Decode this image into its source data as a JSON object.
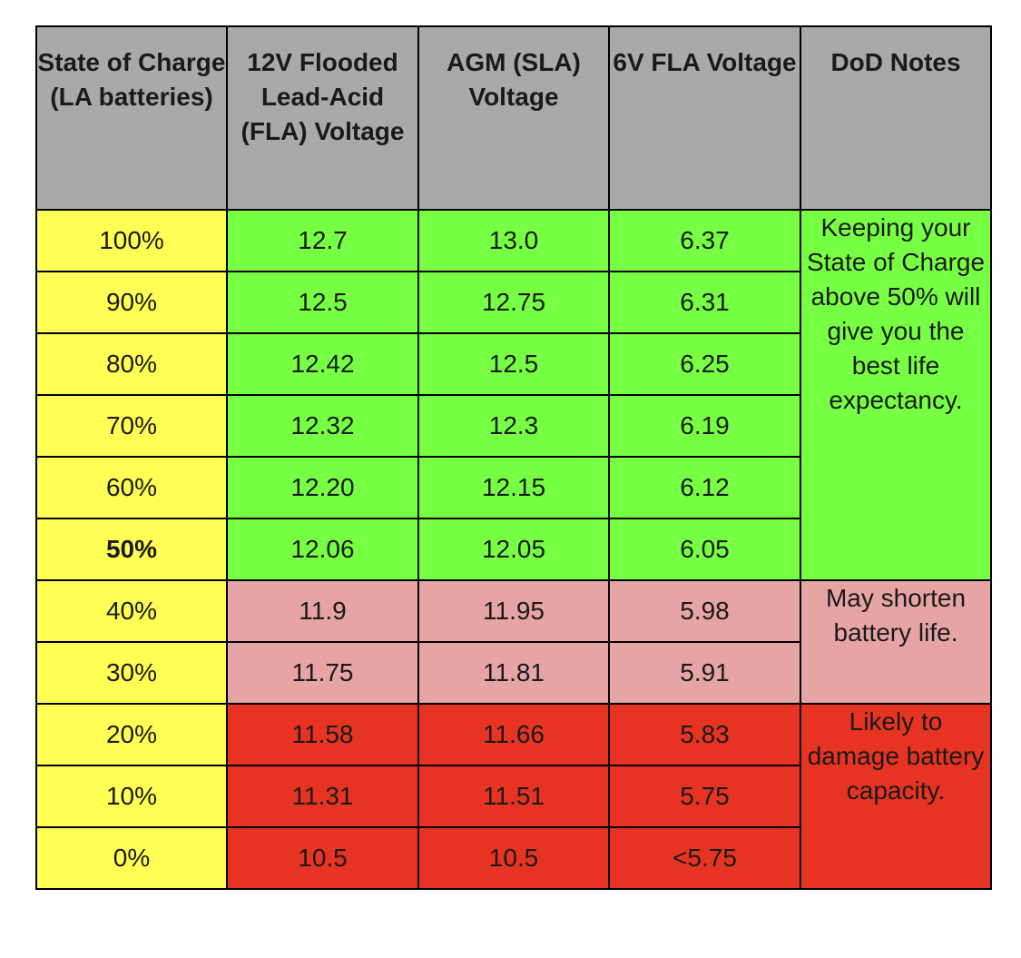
{
  "chart_data": {
    "type": "table",
    "columns": [
      "State of Charge (LA batteries)",
      "12V Flooded Lead-Acid (FLA) Voltage",
      "AGM (SLA) Voltage",
      "6V FLA Voltage",
      "DoD Notes"
    ],
    "rows": [
      {
        "soc": "100%",
        "fla12": "12.7",
        "agm": "13.0",
        "fla6": "6.37"
      },
      {
        "soc": "90%",
        "fla12": "12.5",
        "agm": "12.75",
        "fla6": "6.31"
      },
      {
        "soc": "80%",
        "fla12": "12.42",
        "agm": "12.5",
        "fla6": "6.25"
      },
      {
        "soc": "70%",
        "fla12": "12.32",
        "agm": "12.3",
        "fla6": "6.19"
      },
      {
        "soc": "60%",
        "fla12": "12.20",
        "agm": "12.15",
        "fla6": "6.12"
      },
      {
        "soc": "50%",
        "fla12": "12.06",
        "agm": "12.05",
        "fla6": "6.05",
        "bold": true
      },
      {
        "soc": "40%",
        "fla12": "11.9",
        "agm": "11.95",
        "fla6": "5.98"
      },
      {
        "soc": "30%",
        "fla12": "11.75",
        "agm": "11.81",
        "fla6": "5.91"
      },
      {
        "soc": "20%",
        "fla12": "11.58",
        "agm": "11.66",
        "fla6": "5.83"
      },
      {
        "soc": "10%",
        "fla12": "11.31",
        "agm": "11.51",
        "fla6": "5.75"
      },
      {
        "soc": "0%",
        "fla12": "10.5",
        "agm": "10.5",
        "fla6": "<5.75"
      }
    ],
    "notes": [
      {
        "text": "Keeping your State of Charge above 50% will give you the best life expectancy.",
        "rows": 6,
        "color": "#77ff44"
      },
      {
        "text": "May shorten battery life.",
        "rows": 2,
        "color": "#e7a4a4"
      },
      {
        "text": "Likely to damage battery capacity.",
        "rows": 3,
        "color": "#e63322"
      }
    ],
    "colors": {
      "header": "#a9a9a9",
      "soc_column": "#ffff55",
      "good": "#77ff44",
      "warning": "#e7a4a4",
      "danger": "#e63322"
    }
  }
}
